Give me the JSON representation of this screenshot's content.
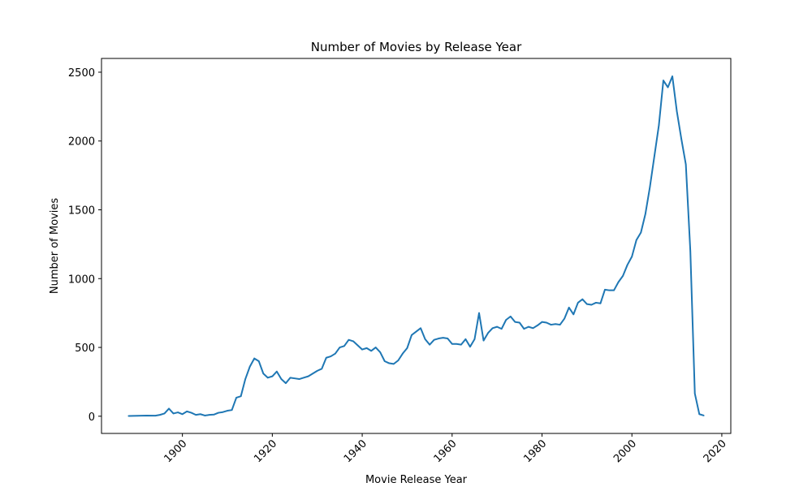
{
  "chart_data": {
    "type": "line",
    "title": "Number of Movies by Release Year",
    "xlabel": "Movie Release Year",
    "ylabel": "Number of Movies",
    "xlim": [
      1882,
      2022
    ],
    "ylim": [
      -125,
      2600
    ],
    "xticks": [
      1900,
      1920,
      1940,
      1960,
      1980,
      2000,
      2020
    ],
    "yticks": [
      0,
      500,
      1000,
      1500,
      2000,
      2500
    ],
    "xtick_rotation": 45,
    "grid": false,
    "legend": false,
    "line_color": "#1f77b4",
    "x": [
      1888,
      1890,
      1892,
      1894,
      1895,
      1896,
      1897,
      1898,
      1899,
      1900,
      1901,
      1902,
      1903,
      1904,
      1905,
      1906,
      1907,
      1908,
      1909,
      1910,
      1911,
      1912,
      1913,
      1914,
      1915,
      1916,
      1917,
      1918,
      1919,
      1920,
      1921,
      1922,
      1923,
      1924,
      1925,
      1926,
      1927,
      1928,
      1929,
      1930,
      1931,
      1932,
      1933,
      1934,
      1935,
      1936,
      1937,
      1938,
      1939,
      1940,
      1941,
      1942,
      1943,
      1944,
      1945,
      1946,
      1947,
      1948,
      1949,
      1950,
      1951,
      1952,
      1953,
      1954,
      1955,
      1956,
      1957,
      1958,
      1959,
      1960,
      1961,
      1962,
      1963,
      1964,
      1965,
      1966,
      1967,
      1968,
      1969,
      1970,
      1971,
      1972,
      1973,
      1974,
      1975,
      1976,
      1977,
      1978,
      1979,
      1980,
      1981,
      1982,
      1983,
      1984,
      1985,
      1986,
      1987,
      1988,
      1989,
      1990,
      1991,
      1992,
      1993,
      1994,
      1995,
      1996,
      1997,
      1998,
      1999,
      2000,
      2001,
      2002,
      2003,
      2004,
      2005,
      2006,
      2007,
      2008,
      2009,
      2010,
      2011,
      2012,
      2013,
      2014,
      2015,
      2016
    ],
    "values": [
      2,
      3,
      5,
      4,
      10,
      20,
      55,
      20,
      28,
      15,
      35,
      25,
      10,
      15,
      5,
      10,
      12,
      25,
      30,
      40,
      45,
      135,
      145,
      270,
      360,
      420,
      400,
      310,
      280,
      290,
      325,
      270,
      240,
      280,
      275,
      270,
      280,
      290,
      310,
      330,
      345,
      425,
      435,
      455,
      500,
      510,
      555,
      545,
      515,
      485,
      495,
      475,
      500,
      465,
      400,
      385,
      380,
      405,
      455,
      495,
      590,
      615,
      640,
      560,
      520,
      555,
      565,
      570,
      565,
      525,
      525,
      520,
      560,
      505,
      560,
      750,
      550,
      605,
      640,
      650,
      635,
      700,
      725,
      685,
      680,
      635,
      650,
      640,
      660,
      685,
      680,
      665,
      670,
      665,
      710,
      790,
      740,
      825,
      850,
      815,
      810,
      825,
      820,
      920,
      915,
      915,
      975,
      1020,
      1100,
      1160,
      1280,
      1335,
      1470,
      1665,
      1890,
      2115,
      2440,
      2390,
      2470,
      2215,
      2015,
      1830,
      1200,
      165,
      15,
      5
    ]
  }
}
